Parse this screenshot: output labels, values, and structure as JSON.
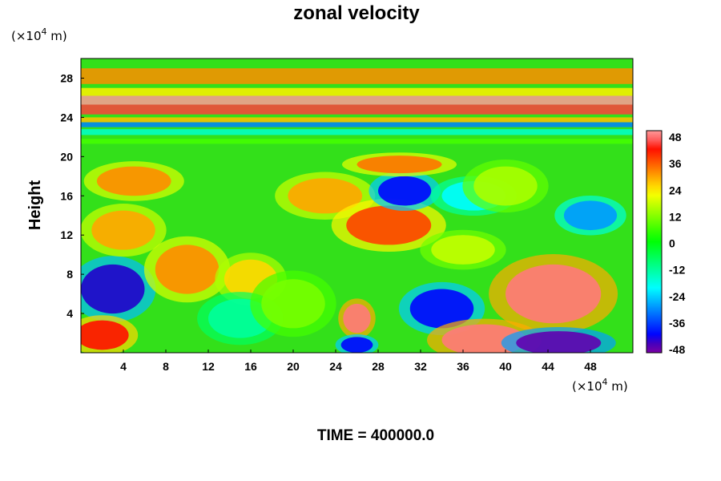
{
  "chart_data": {
    "type": "heatmap",
    "title": "zonal velocity",
    "ylabel": "Height",
    "y_unit": {
      "prefix": "(×10",
      "exp": "4",
      "suffix": " m)"
    },
    "x_unit": {
      "prefix": "(×10",
      "exp": "4",
      "suffix": " m)"
    },
    "footer": "TIME = 400000.0",
    "xlim": [
      0,
      52
    ],
    "ylim": [
      0,
      30
    ],
    "xticks": [
      4,
      8,
      12,
      16,
      20,
      24,
      28,
      32,
      36,
      40,
      44,
      48
    ],
    "yticks": [
      4,
      8,
      12,
      16,
      20,
      24,
      28
    ],
    "colorbar": {
      "min": -48,
      "max": 48,
      "ticks": [
        48,
        36,
        24,
        12,
        0,
        -12,
        -24,
        -36,
        -48
      ]
    },
    "bands": [
      {
        "y0": 27.4,
        "y1": 29.0,
        "value": 30
      },
      {
        "y0": 26.2,
        "y1": 27.0,
        "value": 22
      },
      {
        "y0": 25.3,
        "y1": 26.2,
        "value": 48
      },
      {
        "y0": 24.3,
        "y1": 25.3,
        "value": 42
      },
      {
        "y0": 23.5,
        "y1": 24.0,
        "value": 26
      },
      {
        "y0": 23.0,
        "y1": 23.5,
        "value": -30
      },
      {
        "y0": 22.2,
        "y1": 22.8,
        "value": -16
      },
      {
        "y0": 21.3,
        "y1": 21.8,
        "value": 6
      }
    ],
    "features": [
      {
        "x": 3,
        "y": 6.5,
        "rx": 3,
        "ry": 2.5,
        "value": -42
      },
      {
        "x": 2,
        "y": 1.8,
        "rx": 2.5,
        "ry": 1.5,
        "value": 40
      },
      {
        "x": 4,
        "y": 12.5,
        "rx": 3,
        "ry": 2,
        "value": 28
      },
      {
        "x": 5,
        "y": 17.5,
        "rx": 3.5,
        "ry": 1.5,
        "value": 30
      },
      {
        "x": 10,
        "y": 8.5,
        "rx": 3,
        "ry": 2.5,
        "value": 30
      },
      {
        "x": 16,
        "y": 7.5,
        "rx": 2.5,
        "ry": 2,
        "value": 24
      },
      {
        "x": 15,
        "y": 3.5,
        "rx": 3,
        "ry": 2,
        "value": -12
      },
      {
        "x": 23,
        "y": 16,
        "rx": 3.5,
        "ry": 1.8,
        "value": 28
      },
      {
        "x": 29,
        "y": 13,
        "rx": 4,
        "ry": 2,
        "value": 36
      },
      {
        "x": 30.5,
        "y": 16.5,
        "rx": 2.5,
        "ry": 1.5,
        "value": -40
      },
      {
        "x": 26,
        "y": 3.5,
        "rx": 1.3,
        "ry": 1.5,
        "value": 46
      },
      {
        "x": 26,
        "y": 0.8,
        "rx": 1.5,
        "ry": 0.8,
        "value": -40
      },
      {
        "x": 34,
        "y": 4.5,
        "rx": 3,
        "ry": 2,
        "value": -40
      },
      {
        "x": 38,
        "y": 1.3,
        "rx": 4,
        "ry": 1.6,
        "value": 46
      },
      {
        "x": 44.5,
        "y": 6,
        "rx": 4.5,
        "ry": 3,
        "value": 46
      },
      {
        "x": 45,
        "y": 1,
        "rx": 4,
        "ry": 1.2,
        "value": -46
      },
      {
        "x": 48,
        "y": 14,
        "rx": 2.5,
        "ry": 1.5,
        "value": -28
      },
      {
        "x": 30,
        "y": 19.2,
        "rx": 4,
        "ry": 0.9,
        "value": 32
      },
      {
        "x": 37,
        "y": 16,
        "rx": 3,
        "ry": 1.5,
        "value": -20
      },
      {
        "x": 40,
        "y": 17,
        "rx": 3,
        "ry": 2,
        "value": 14
      },
      {
        "x": 20,
        "y": 5,
        "rx": 3,
        "ry": 2.5,
        "value": 10
      },
      {
        "x": 36,
        "y": 10.5,
        "rx": 3,
        "ry": 1.5,
        "value": 16
      }
    ]
  }
}
